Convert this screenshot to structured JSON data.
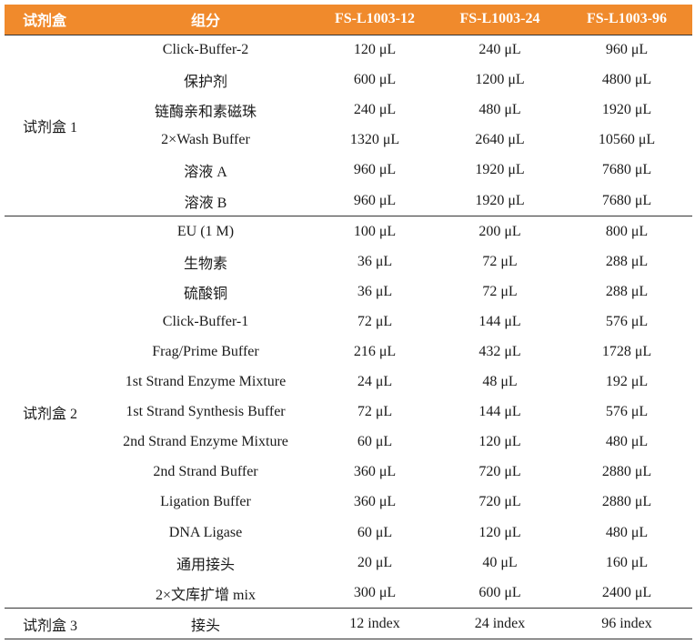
{
  "colors": {
    "header_bg": "#f08a2c",
    "header_text": "#ffffff",
    "rule": "#333333"
  },
  "header": {
    "kit": "试剂盒",
    "component": "组分",
    "col12": "FS-L1003-12",
    "col24": "FS-L1003-24",
    "col96": "FS-L1003-96"
  },
  "kits": [
    {
      "name": "试剂盒 1",
      "rows": [
        {
          "component": "Click-Buffer-2",
          "v12": "120 μL",
          "v24": "240 μL",
          "v96": "960 μL"
        },
        {
          "component": "保护剂",
          "v12": "600 μL",
          "v24": "1200 μL",
          "v96": "4800 μL"
        },
        {
          "component": "链酶亲和素磁珠",
          "v12": "240 μL",
          "v24": "480 μL",
          "v96": "1920 μL"
        },
        {
          "component": "2×Wash Buffer",
          "v12": "1320 μL",
          "v24": "2640 μL",
          "v96": "10560 μL"
        },
        {
          "component": "溶液 A",
          "v12": "960 μL",
          "v24": "1920 μL",
          "v96": "7680 μL"
        },
        {
          "component": "溶液 B",
          "v12": "960 μL",
          "v24": "1920 μL",
          "v96": "7680 μL"
        }
      ]
    },
    {
      "name": "试剂盒 2",
      "rows": [
        {
          "component": "EU (1 M)",
          "v12": "100 μL",
          "v24": "200 μL",
          "v96": "800 μL"
        },
        {
          "component": "生物素",
          "v12": "36 μL",
          "v24": "72 μL",
          "v96": "288 μL"
        },
        {
          "component": "硫酸铜",
          "v12": "36 μL",
          "v24": "72 μL",
          "v96": "288 μL"
        },
        {
          "component": "Click-Buffer-1",
          "v12": "72 μL",
          "v24": "144 μL",
          "v96": "576 μL"
        },
        {
          "component": "Frag/Prime Buffer",
          "v12": "216 μL",
          "v24": "432 μL",
          "v96": "1728 μL"
        },
        {
          "component": "1st Strand Enzyme Mixture",
          "v12": "24 μL",
          "v24": "48 μL",
          "v96": "192 μL"
        },
        {
          "component": "1st Strand Synthesis Buffer",
          "v12": "72 μL",
          "v24": "144 μL",
          "v96": "576 μL"
        },
        {
          "component": "2nd Strand Enzyme Mixture",
          "v12": "60 μL",
          "v24": "120 μL",
          "v96": "480 μL"
        },
        {
          "component": "2nd Strand Buffer",
          "v12": "360 μL",
          "v24": "720 μL",
          "v96": "2880 μL"
        },
        {
          "component": "Ligation Buffer",
          "v12": "360 μL",
          "v24": "720 μL",
          "v96": "2880 μL"
        },
        {
          "component": "DNA Ligase",
          "v12": "60 μL",
          "v24": "120 μL",
          "v96": "480 μL"
        },
        {
          "component": "通用接头",
          "v12": "20 μL",
          "v24": "40 μL",
          "v96": "160 μL"
        },
        {
          "component": "2×文库扩增 mix",
          "v12": "300 μL",
          "v24": "600 μL",
          "v96": "2400 μL"
        }
      ]
    },
    {
      "name": "试剂盒 3",
      "rows": [
        {
          "component": "接头",
          "v12": "12 index",
          "v24": "24 index",
          "v96": "96 index"
        }
      ]
    }
  ]
}
